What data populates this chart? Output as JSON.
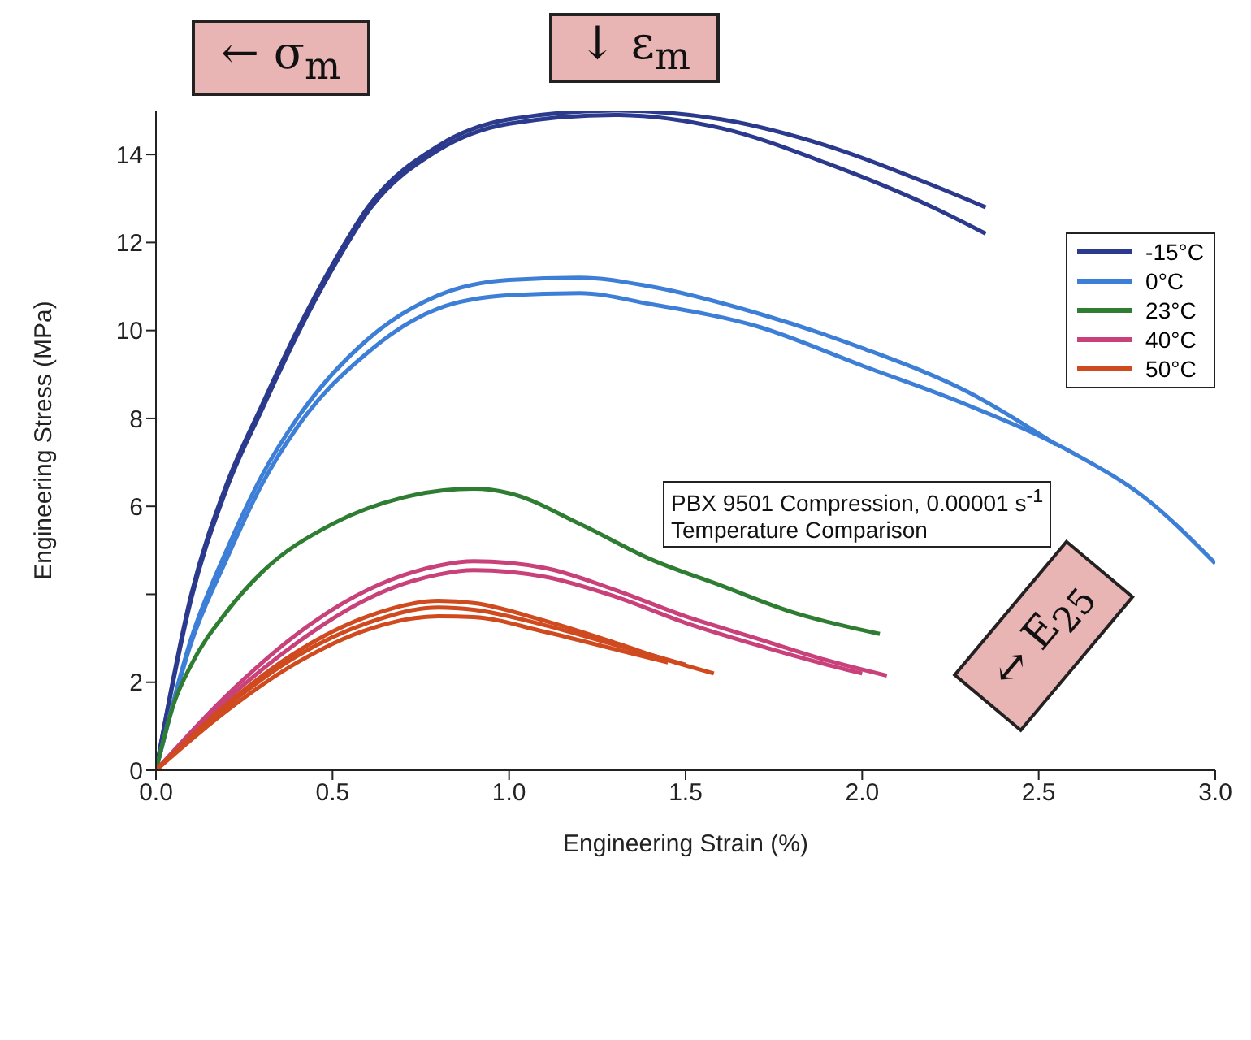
{
  "chart_data": {
    "type": "line",
    "xlabel": "Engineering Strain (%)",
    "ylabel": "Engineering Stress (MPa)",
    "xlim": [
      0,
      3
    ],
    "xticks": [
      {
        "value": 0,
        "label": "0.0"
      },
      0.5,
      {
        "value": 1,
        "label": "1.0"
      },
      1.5,
      {
        "value": 2,
        "label": "2.0"
      },
      2.5,
      {
        "value": 3,
        "label": "3.0"
      }
    ],
    "ylim": [
      0,
      15
    ],
    "yticks": [
      0,
      2,
      {
        "value": 4,
        "label": null
      },
      6,
      8,
      10,
      12,
      14
    ],
    "grid": false,
    "legend": "top right",
    "marker": "none",
    "line_style": "solid",
    "annotations": [
      "← σ$_{m}$",
      "↓ ε$_{m}$",
      "↔ E$_{25}$",
      "PBX 9501 Compression, 0.00001 s$^{-1}$",
      "Temperature Comparison"
    ],
    "series": [
      {
        "name": "-15°C",
        "color": "#2b3a8c",
        "x": [
          0,
          0.1,
          0.2,
          0.3,
          0.4,
          0.5,
          0.6,
          0.8,
          1.0,
          1.3,
          1.6,
          1.9,
          2.2,
          2.35
        ],
        "values": [
          0,
          4,
          6.5,
          8.3,
          10,
          11.5,
          12.8,
          14.2,
          14.8,
          15,
          14.8,
          14.2,
          13.3,
          12.8
        ]
      },
      {
        "color": "#2b3a8c",
        "x": [
          0,
          0.1,
          0.2,
          0.3,
          0.4,
          0.5,
          0.6,
          0.8,
          1.0,
          1.3,
          1.6,
          1.9,
          2.2,
          2.35
        ],
        "values": [
          0,
          3.9,
          6.4,
          8.2,
          9.9,
          11.4,
          12.7,
          14.1,
          14.7,
          14.9,
          14.6,
          13.8,
          12.8,
          12.2
        ]
      },
      {
        "name": "0°C",
        "color": "#3d7fd6",
        "x": [
          0,
          0.1,
          0.2,
          0.3,
          0.4,
          0.6,
          0.8,
          1.0,
          1.2,
          1.4,
          1.7,
          2.0,
          2.3,
          2.55
        ],
        "values": [
          0,
          3,
          5,
          6.7,
          8,
          9.8,
          10.8,
          11.15,
          11.2,
          11,
          10.4,
          9.6,
          8.6,
          7.4
        ]
      },
      {
        "color": "#3d7fd6",
        "x": [
          0,
          0.1,
          0.2,
          0.3,
          0.4,
          0.6,
          0.8,
          1.0,
          1.2,
          1.4,
          1.7,
          2.0,
          2.3,
          2.6,
          2.8,
          3.0
        ],
        "values": [
          0,
          2.9,
          4.8,
          6.5,
          7.8,
          9.5,
          10.5,
          10.8,
          10.85,
          10.6,
          10.1,
          9.2,
          8.3,
          7.2,
          6.2,
          4.7
        ]
      },
      {
        "name": "23°C",
        "color": "#2e7d32",
        "x": [
          0,
          0.05,
          0.1,
          0.2,
          0.3,
          0.5,
          0.7,
          0.9,
          1.0,
          1.2,
          1.4,
          1.6,
          1.8,
          2.05
        ],
        "values": [
          0,
          1.5,
          2.4,
          3.6,
          4.5,
          5.6,
          6.2,
          6.4,
          6.3,
          5.6,
          4.8,
          4.2,
          3.6,
          3.1
        ]
      },
      {
        "name": "40°C",
        "color": "#c8417a",
        "x": [
          0,
          0.2,
          0.4,
          0.6,
          0.8,
          0.9,
          1.1,
          1.3,
          1.5,
          1.7,
          1.9,
          2.07
        ],
        "values": [
          0,
          1.7,
          3.1,
          4.1,
          4.65,
          4.75,
          4.6,
          4.1,
          3.5,
          3,
          2.5,
          2.15
        ]
      },
      {
        "color": "#c8417a",
        "x": [
          0,
          0.2,
          0.4,
          0.6,
          0.8,
          0.9,
          1.1,
          1.3,
          1.5,
          1.7,
          1.9,
          2.0
        ],
        "values": [
          0,
          1.6,
          2.9,
          3.9,
          4.45,
          4.55,
          4.4,
          3.95,
          3.35,
          2.85,
          2.4,
          2.2
        ]
      },
      {
        "name": "50°C",
        "color": "#d04a1f",
        "x": [
          0,
          0.2,
          0.4,
          0.6,
          0.8,
          0.9,
          1.1,
          1.3,
          1.45,
          1.58
        ],
        "values": [
          0,
          1.5,
          2.7,
          3.5,
          3.85,
          3.8,
          3.4,
          2.9,
          2.5,
          2.2
        ]
      },
      {
        "color": "#d04a1f",
        "x": [
          0,
          0.2,
          0.4,
          0.6,
          0.8,
          0.9,
          1.1,
          1.3,
          1.5
        ],
        "values": [
          0,
          1.45,
          2.6,
          3.35,
          3.7,
          3.65,
          3.3,
          2.85,
          2.4
        ]
      },
      {
        "color": "#d04a1f",
        "x": [
          0,
          0.2,
          0.4,
          0.6,
          0.8,
          0.9,
          1.1,
          1.3,
          1.45
        ],
        "values": [
          0,
          1.35,
          2.45,
          3.2,
          3.5,
          3.48,
          3.15,
          2.75,
          2.45
        ]
      }
    ]
  }
}
